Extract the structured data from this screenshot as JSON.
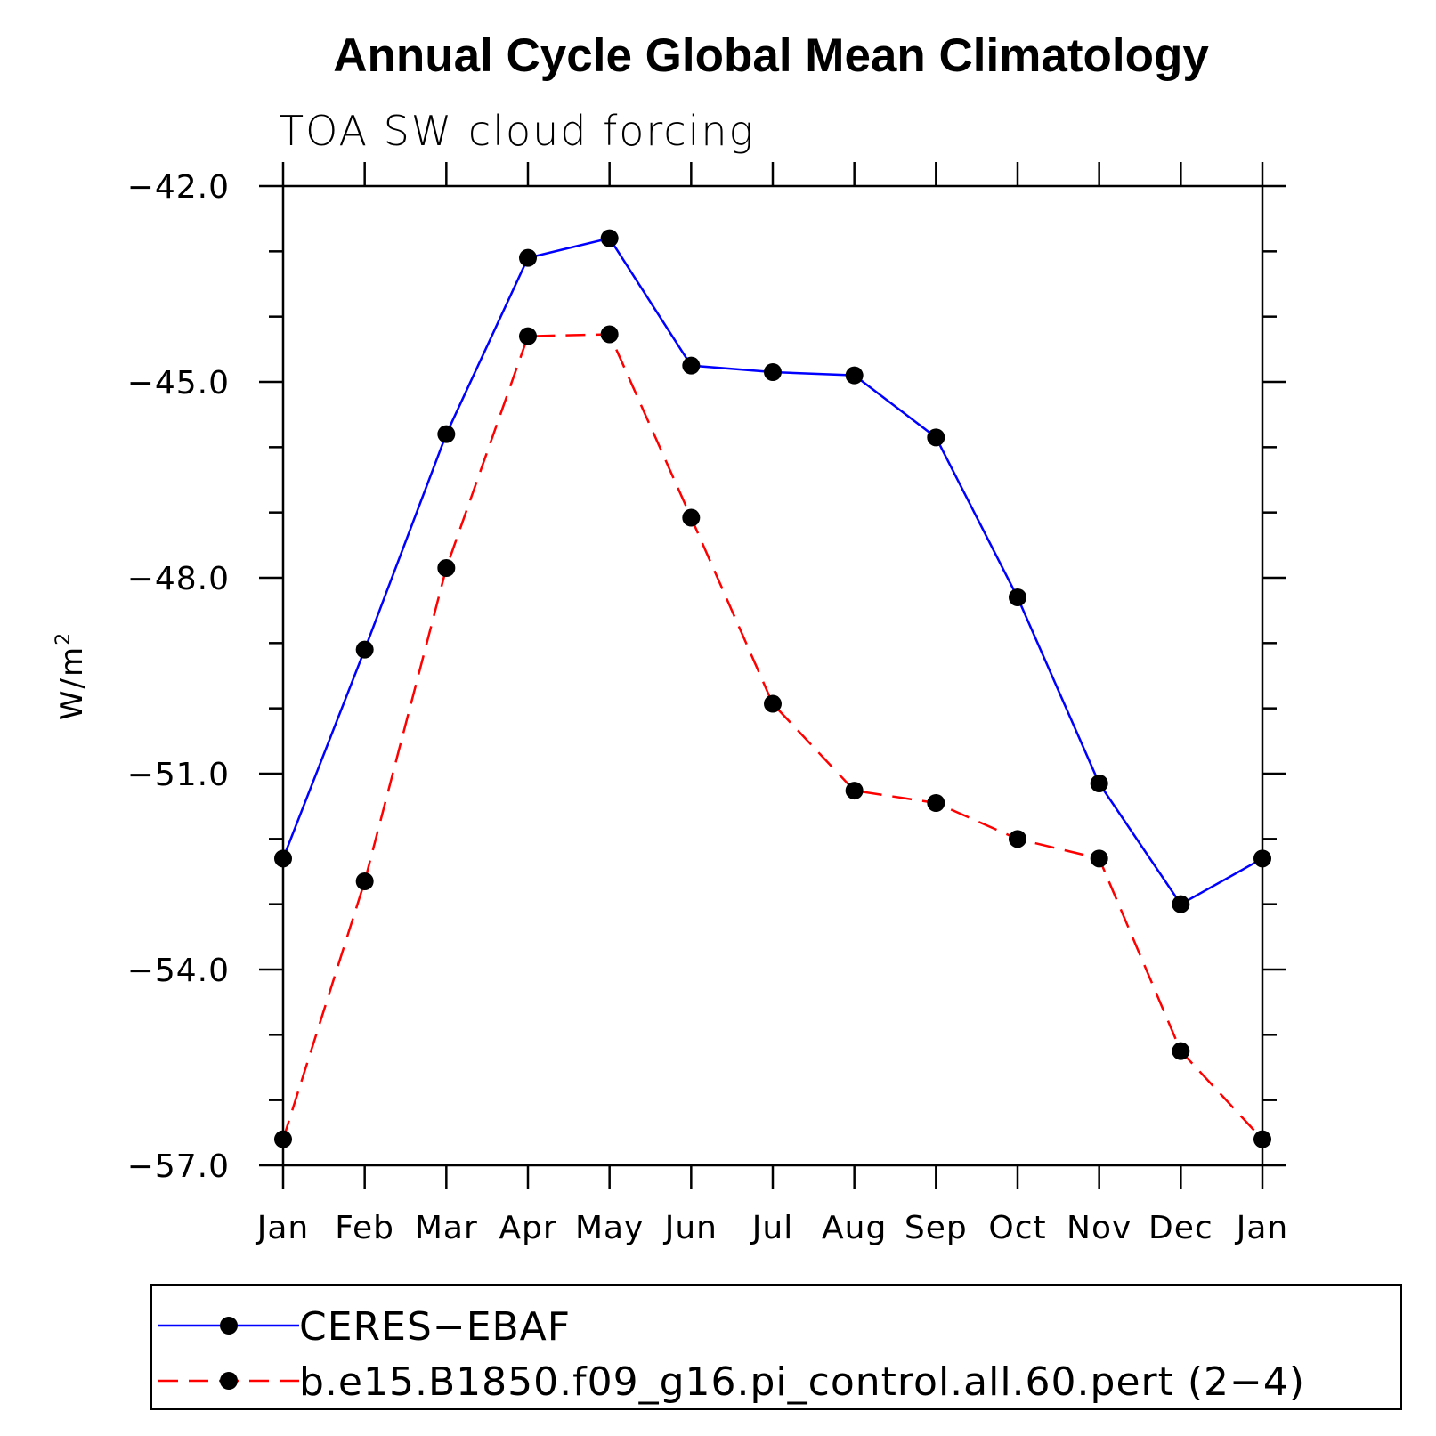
{
  "chart_data": {
    "type": "line",
    "title": "Annual Cycle Global Mean Climatology",
    "subtitle": "TOA SW cloud forcing",
    "xlabel": "",
    "ylabel": "W/m",
    "ylabel_superscript": "2",
    "categories": [
      "Jan",
      "Feb",
      "Mar",
      "Apr",
      "May",
      "Jun",
      "Jul",
      "Aug",
      "Sep",
      "Oct",
      "Nov",
      "Dec",
      "Jan"
    ],
    "yticks": [
      "-42.0",
      "-45.0",
      "-48.0",
      "-51.0",
      "-54.0",
      "-57.0"
    ],
    "ylim": [
      -57.0,
      -42.0
    ],
    "grid": false,
    "legend_position": "bottom",
    "series": [
      {
        "name": "CERES-EBAF",
        "color": "#0000ff",
        "dash": "solid",
        "values": [
          -52.3,
          -49.1,
          -45.8,
          -43.1,
          -42.8,
          -44.75,
          -44.85,
          -44.9,
          -45.85,
          -48.3,
          -51.15,
          -53.0,
          -52.3
        ]
      },
      {
        "name": "b.e15.B1850.f09_g16.pi_control.all.60.pert (2-4)",
        "color": "#ff0000",
        "dash": "dashed",
        "values": [
          -56.6,
          -52.65,
          -47.85,
          -44.3,
          -44.27,
          -47.08,
          -49.93,
          -51.26,
          -51.45,
          -52.0,
          -52.3,
          -55.25,
          -56.6
        ]
      }
    ]
  }
}
